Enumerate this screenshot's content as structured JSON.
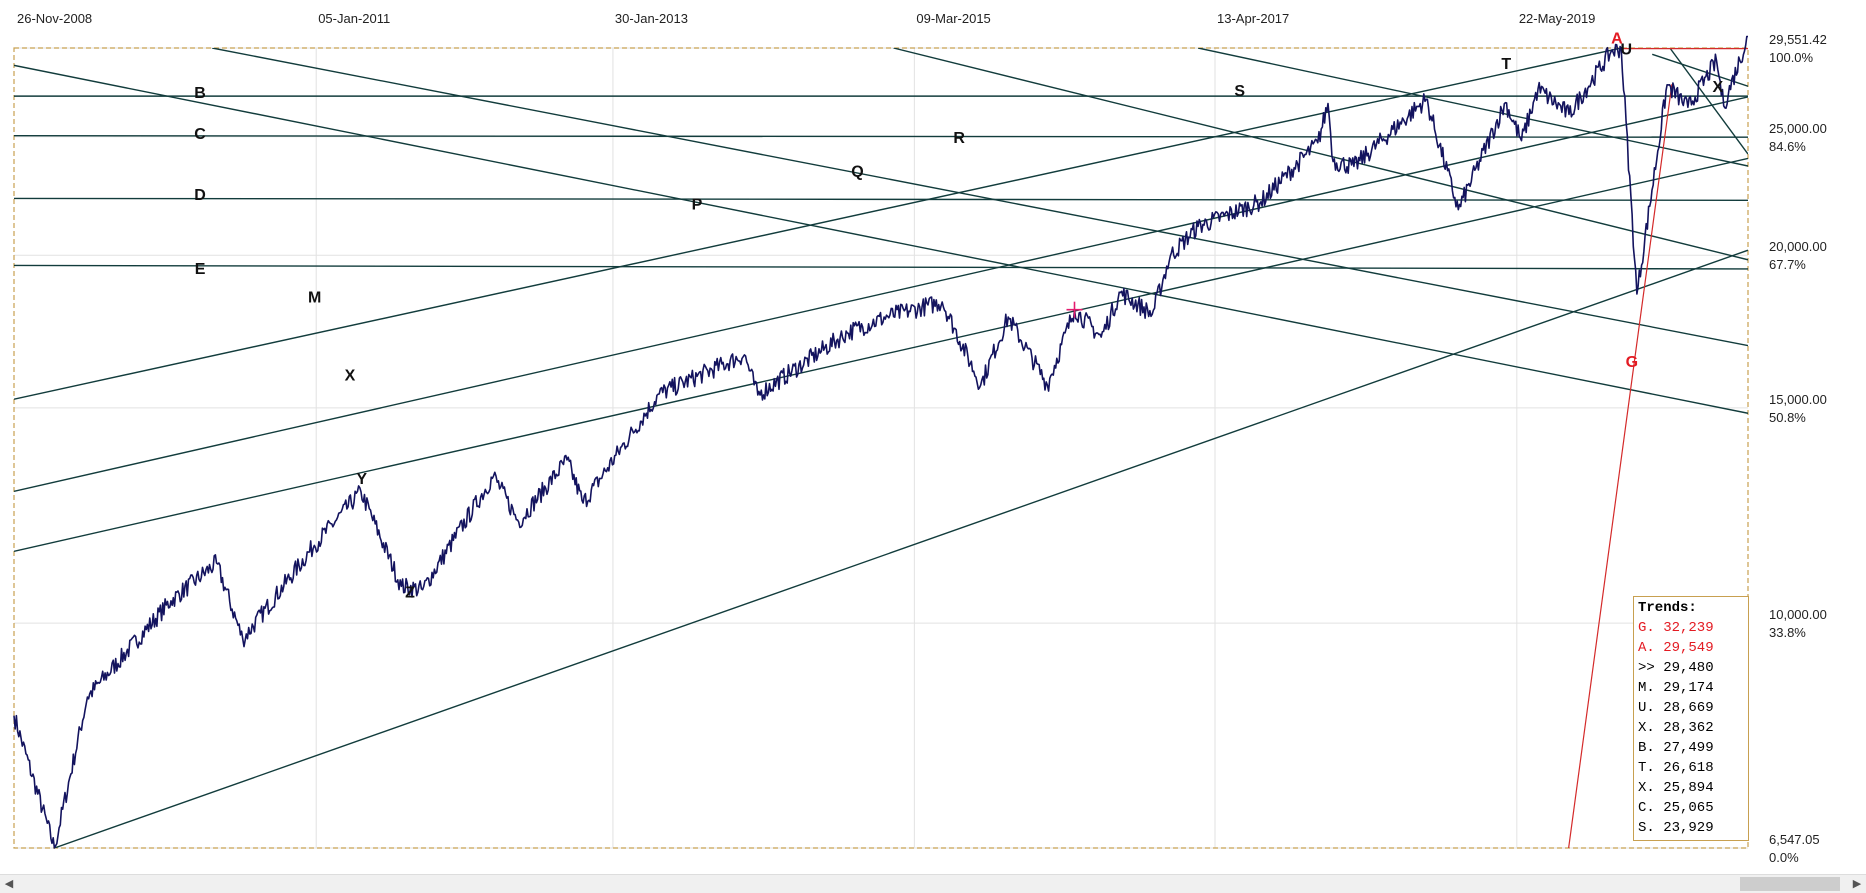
{
  "chart_data": {
    "type": "line",
    "x_range": [
      "2008-11-26",
      "2020-12-31"
    ],
    "date_ticks": [
      "26-Nov-2008",
      "05-Jan-2011",
      "30-Jan-2013",
      "09-Mar-2015",
      "13-Apr-2017",
      "22-May-2019"
    ],
    "y_scale": "log",
    "ylim": [
      6547.05,
      29551.42
    ],
    "price_ticks": [
      {
        "price": "29,551.42",
        "pct": "100.0%"
      },
      {
        "price": "25,000.00",
        "pct": "84.6%"
      },
      {
        "price": "20,000.00",
        "pct": "67.7%"
      },
      {
        "price": "15,000.00",
        "pct": "50.8%"
      },
      {
        "price": "10,000.00",
        "pct": "33.8%"
      },
      {
        "price": "6,547.05",
        "pct": "0.0%"
      }
    ],
    "series": [
      {
        "values": [
          [
            "2008-11-26",
            8400
          ],
          [
            "2009-03-09",
            6547
          ],
          [
            "2009-06-01",
            8700
          ],
          [
            "2009-12-31",
            10430
          ],
          [
            "2010-04-26",
            11200
          ],
          [
            "2010-07-02",
            9700
          ],
          [
            "2010-12-31",
            11577
          ],
          [
            "2011-04-29",
            12810
          ],
          [
            "2011-08-10",
            10720
          ],
          [
            "2011-10-03",
            10650
          ],
          [
            "2012-04-01",
            13200
          ],
          [
            "2012-06-04",
            12100
          ],
          [
            "2012-10-05",
            13600
          ],
          [
            "2012-11-15",
            12540
          ],
          [
            "2013-05-28",
            15400
          ],
          [
            "2013-12-31",
            16576
          ],
          [
            "2014-02-03",
            15370
          ],
          [
            "2014-09-19",
            17280
          ],
          [
            "2014-12-31",
            17823
          ],
          [
            "2015-05-19",
            18312
          ],
          [
            "2015-08-25",
            15660
          ],
          [
            "2015-11-03",
            17800
          ],
          [
            "2016-02-11",
            15660
          ],
          [
            "2016-04-20",
            18050
          ],
          [
            "2016-06-27",
            17140
          ],
          [
            "2016-08-15",
            18640
          ],
          [
            "2016-11-04",
            17890
          ],
          [
            "2016-12-20",
            19970
          ],
          [
            "2017-03-01",
            21115
          ],
          [
            "2017-08-08",
            22120
          ],
          [
            "2017-12-31",
            24719
          ],
          [
            "2018-01-26",
            26617
          ],
          [
            "2018-02-08",
            23860
          ],
          [
            "2018-04-02",
            23644
          ],
          [
            "2018-10-03",
            26828
          ],
          [
            "2018-12-24",
            21792
          ],
          [
            "2019-04-23",
            26656
          ],
          [
            "2019-06-03",
            24815
          ],
          [
            "2019-07-15",
            27359
          ],
          [
            "2019-10-02",
            26078
          ],
          [
            "2020-01-17",
            29348
          ],
          [
            "2020-02-12",
            29551
          ],
          [
            "2020-03-23",
            18591
          ],
          [
            "2020-06-08",
            27572
          ],
          [
            "2020-07-31",
            26428
          ],
          [
            "2020-10-12",
            28837
          ],
          [
            "2020-10-30",
            26501
          ],
          [
            "2020-12-31",
            30200
          ]
        ]
      }
    ],
    "wave_labels": [
      {
        "text": "B",
        "date": "2010-03-15",
        "price": 26900
      },
      {
        "text": "C",
        "date": "2010-03-15",
        "price": 24900
      },
      {
        "text": "D",
        "date": "2010-03-15",
        "price": 22200
      },
      {
        "text": "E",
        "date": "2010-03-15",
        "price": 19300
      },
      {
        "text": "M",
        "date": "2011-01-01",
        "price": 18300
      },
      {
        "text": "X",
        "date": "2011-04-01",
        "price": 15800
      },
      {
        "text": "Y",
        "date": "2011-05-01",
        "price": 13000
      },
      {
        "text": "Z",
        "date": "2011-09-01",
        "price": 10500
      },
      {
        "text": "P",
        "date": "2013-09-01",
        "price": 21800
      },
      {
        "text": "Q",
        "date": "2014-10-15",
        "price": 23200
      },
      {
        "text": "R",
        "date": "2015-07-01",
        "price": 24700
      },
      {
        "text": "S",
        "date": "2017-06-15",
        "price": 27000
      },
      {
        "text": "T",
        "date": "2019-04-25",
        "price": 28400
      },
      {
        "text": "U",
        "date": "2020-02-25",
        "price": 29200
      },
      {
        "text": "X",
        "date": "2020-10-15",
        "price": 27200
      },
      {
        "text": "A",
        "date": "2020-02-01",
        "price": 29800,
        "color": "#e31b23"
      },
      {
        "text": "G",
        "date": "2020-03-10",
        "price": 16200,
        "color": "#e31b23"
      }
    ],
    "trendlines": [
      {
        "from": [
          "2008-11-26",
          26990
        ],
        "to": [
          "2020-12-31",
          26990
        ]
      },
      {
        "from": [
          "2008-11-26",
          25050
        ],
        "to": [
          "2020-12-31",
          24980
        ]
      },
      {
        "from": [
          "2008-11-26",
          22260
        ],
        "to": [
          "2020-12-31",
          22180
        ]
      },
      {
        "from": [
          "2008-11-26",
          19620
        ],
        "to": [
          "2020-12-31",
          19490
        ]
      },
      {
        "from": [
          "2008-11-26",
          15250
        ],
        "to": [
          "2020-02-12",
          29551
        ]
      },
      {
        "from": [
          "2008-11-26",
          12820
        ],
        "to": [
          "2020-12-31",
          26950
        ]
      },
      {
        "from": [
          "2008-11-26",
          11450
        ],
        "to": [
          "2020-12-31",
          24000
        ]
      },
      {
        "from": [
          "2009-03-09",
          6547
        ],
        "to": [
          "2020-12-31",
          20190
        ]
      },
      {
        "from": [
          "2008-11-26",
          28600
        ],
        "to": [
          "2020-12-31",
          14850
        ]
      },
      {
        "from": [
          "2010-04-15",
          29551
        ],
        "to": [
          "2020-12-31",
          16870
        ]
      },
      {
        "from": [
          "2015-01-15",
          29551
        ],
        "to": [
          "2020-12-31",
          19830
        ]
      },
      {
        "from": [
          "2017-03-01",
          29551
        ],
        "to": [
          "2020-12-31",
          23660
        ]
      },
      {
        "from": [
          "2020-06-15",
          29551
        ],
        "to": [
          "2020-12-31",
          24200
        ]
      },
      {
        "from": [
          "2020-05-01",
          29200
        ],
        "to": [
          "2020-12-31",
          27500
        ]
      }
    ],
    "red_lines": [
      {
        "from": [
          "2020-02-12",
          29551
        ],
        "to": [
          "2020-12-31",
          29551
        ]
      },
      {
        "from": [
          "2019-10-01",
          6547
        ],
        "to": [
          "2020-06-20",
          27600
        ]
      }
    ],
    "marker": {
      "date": "2016-04-20",
      "price": 18050,
      "color": "#e31b6e"
    }
  },
  "trends": {
    "title": "Trends:",
    "rows": [
      {
        "text": "G. 32,239",
        "color": "#e31b23"
      },
      {
        "text": "A. 29,549",
        "color": "#e31b23"
      },
      {
        "text": ">> 29,480",
        "color": "#000000"
      },
      {
        "text": "M. 29,174",
        "color": "#000000"
      },
      {
        "text": "U. 28,669",
        "color": "#000000"
      },
      {
        "text": "X. 28,362",
        "color": "#000000"
      },
      {
        "text": "B. 27,499",
        "color": "#000000"
      },
      {
        "text": "T. 26,618",
        "color": "#000000"
      },
      {
        "text": "X. 25,894",
        "color": "#000000"
      },
      {
        "text": "C. 25,065",
        "color": "#000000"
      },
      {
        "text": "S. 23,929",
        "color": "#000000"
      }
    ]
  },
  "colors": {
    "price_line": "#13135e",
    "trendline": "#123c3c",
    "frame": "#c8a050",
    "grid": "#e2e2e2",
    "red": "#d42a2a"
  },
  "scrollbar": {
    "left_icon": "chevron-left-icon",
    "right_icon": "chevron-right-icon"
  }
}
